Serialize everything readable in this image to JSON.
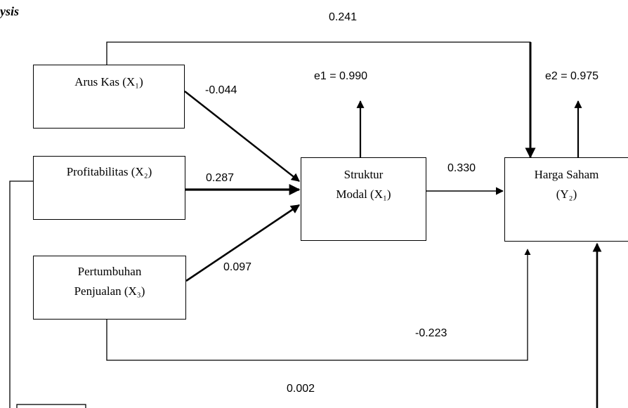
{
  "header": {
    "title_fragment": "ysis"
  },
  "nodes": {
    "x1": {
      "lines": [
        "Arus Kas (X₁)"
      ]
    },
    "x2": {
      "lines": [
        "Profitabilitas (X₂)"
      ]
    },
    "x3": {
      "lines": [
        "Pertumbuhan",
        "Penjualan (X₃)"
      ]
    },
    "y1": {
      "lines": [
        "Struktur",
        "Modal (X₁)"
      ]
    },
    "y2": {
      "lines": [
        "Harga Saham",
        "(Y₂)"
      ]
    }
  },
  "paths": {
    "x1_y1": "-0.044",
    "x2_y1": "0.287",
    "x3_y1": "0.097",
    "y1_y2": "0.330",
    "x1_y2": "0.241",
    "x3_y2": "-0.223",
    "x2_y2": "0.002"
  },
  "errors": {
    "e1": "e1 = 0.990",
    "e2": "e2 = 0.975"
  }
}
